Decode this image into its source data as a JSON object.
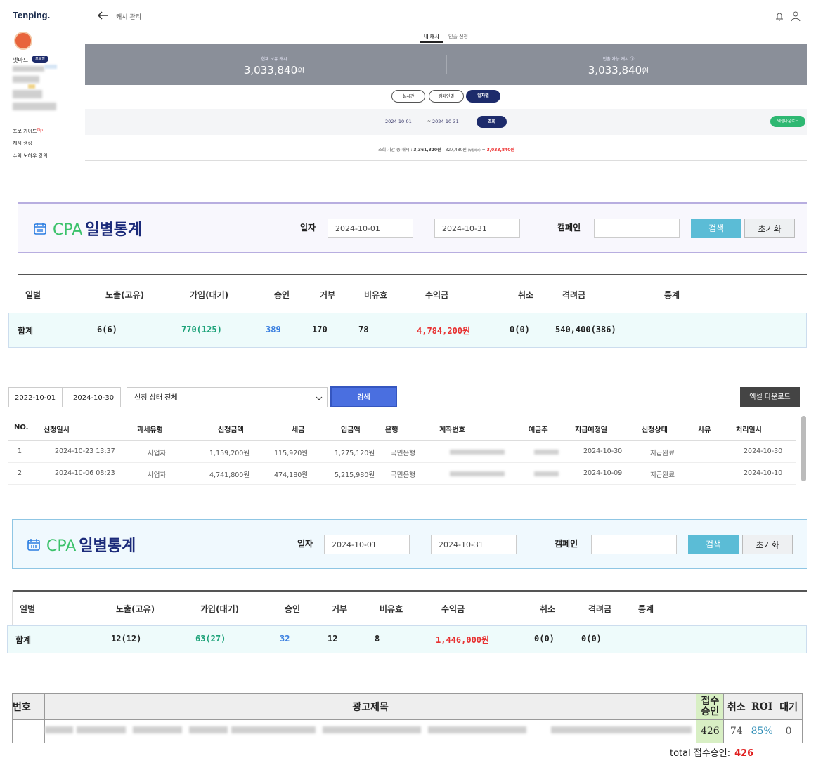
{
  "app": {
    "logo": "Tenping.",
    "user": "넷마드",
    "badge": "프로필",
    "menu": [
      "초보 가이드",
      "캐시 랭킹",
      "수익 노하우 강의"
    ],
    "tip": "Tip",
    "page_title": "캐시 관리",
    "tabs": [
      "내 캐시",
      "인출 신청"
    ],
    "balance": [
      {
        "label": "현재 보유 캐시",
        "amount": "3,033,840",
        "unit": "원"
      },
      {
        "label": "인출 가능 캐시 ⓘ",
        "amount": "3,033,840",
        "unit": "원"
      }
    ],
    "view_buttons": [
      "실시간",
      "캠페인별",
      "일자별"
    ],
    "date_from": "2024-10-01",
    "date_sep": "~",
    "date_to": "2024-10-31",
    "query": "조회",
    "excel": "엑셀다운로드",
    "summary": {
      "label": "조회 기간 총 캐시 :",
      "total": "3,361,320원",
      "minus": "- 327,480원",
      "note": "(부정처리)",
      "equals": "=",
      "result": "3,033,840원"
    }
  },
  "cpa_panels": [
    {
      "title_latin": "CPA",
      "title": "일별통계",
      "date_label": "일자",
      "from": "2024-10-01",
      "to": "2024-10-31",
      "campaign_label": "캠페인",
      "search": "검색",
      "reset": "초기화",
      "columns": [
        "일별",
        "노출(고유)",
        "가입(대기)",
        "승인",
        "거부",
        "비유효",
        "수익금",
        "취소",
        "격려금",
        "통계"
      ],
      "total_row": [
        "합계",
        "6(6)",
        "770(125)",
        "389",
        "170",
        "78",
        "4,784,200원",
        "0(0)",
        "540,400(386)"
      ]
    },
    {
      "title_latin": "CPA",
      "title": "일별통계",
      "date_label": "일자",
      "from": "2024-10-01",
      "to": "2024-10-31",
      "campaign_label": "캠페인",
      "search": "검색",
      "reset": "초기화",
      "columns": [
        "일별",
        "노출(고유)",
        "가입(대기)",
        "승인",
        "거부",
        "비유효",
        "수익금",
        "취소",
        "격려금",
        "통계"
      ],
      "total_row": [
        "합계",
        "12(12)",
        "63(27)",
        "32",
        "12",
        "8",
        "1,446,000원",
        "0(0)",
        "0(0)"
      ]
    }
  ],
  "withdrawal": {
    "from": "2022-10-01",
    "to": "2024-10-30",
    "status_filter": "신청 상태 전체",
    "search": "검색",
    "excel": "엑셀 다운로드",
    "columns": [
      "NO.",
      "신청일시",
      "과세유형",
      "신청금액",
      "세금",
      "입금액",
      "은행",
      "계좌번호",
      "예금주",
      "지급예정일",
      "신청상태",
      "사유",
      "처리일시"
    ],
    "rows": [
      {
        "no": "1",
        "datetime": "2024-10-23 13:37",
        "tax_type": "사업자",
        "amount": "1,159,200원",
        "tax": "115,920원",
        "deposit": "1,275,120원",
        "bank": "국민은행",
        "due_date": "2024-10-30",
        "status": "지급완료",
        "processed": "2024-10-30"
      },
      {
        "no": "2",
        "datetime": "2024-10-06 08:23",
        "tax_type": "사업자",
        "amount": "4,741,800원",
        "tax": "474,180원",
        "deposit": "5,215,980원",
        "bank": "국민은행",
        "due_date": "2024-10-09",
        "status": "지급완료",
        "processed": "2024-10-10"
      }
    ]
  },
  "ad_table": {
    "columns": [
      "번호",
      "광고제목",
      "접수승인",
      "취소",
      "ROI",
      "대기"
    ],
    "row": {
      "approved": "426",
      "cancel": "74",
      "roi": "85%",
      "waiting": "0"
    },
    "total_label": "total 접수승인:",
    "total_value": "426"
  }
}
